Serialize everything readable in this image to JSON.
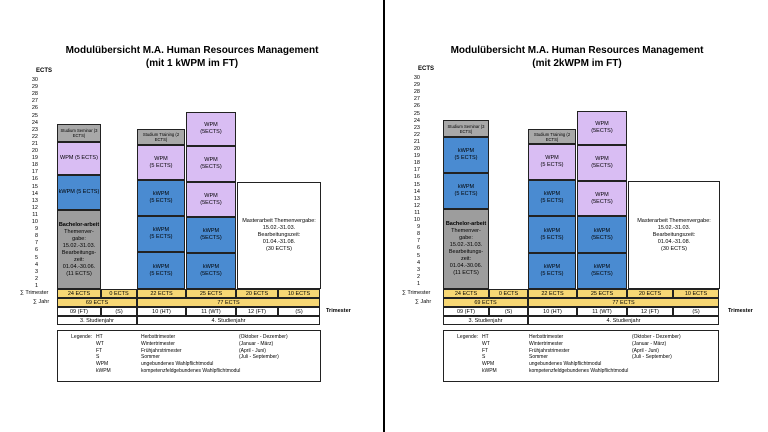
{
  "ects_label": "ECTS",
  "y_ticks": [
    "30",
    "29",
    "28",
    "27",
    "26",
    "25",
    "24",
    "23",
    "22",
    "21",
    "20",
    "19",
    "18",
    "17",
    "16",
    "15",
    "14",
    "13",
    "12",
    "11",
    "10",
    "9",
    "8",
    "7",
    "6",
    "5",
    "4",
    "3",
    "2",
    "1"
  ],
  "left": {
    "title_line1": "Modulübersicht M.A. Human Resources Management",
    "title_line2": "(mit 1 kWPM im FT)",
    "col1": {
      "seminar": "Studium Seminar (3 ECTS)",
      "wpm": "WPM (5 ECTS)",
      "kwpm": "kWPM (5 ECTS)",
      "bachelor": [
        "Bachelor-arbeit",
        "Themenver-",
        "gabe:",
        "15.02.-31.03.",
        "Bearbeitungs-",
        "zeit:",
        "01.04.-30.06.",
        "(11 ECTS)"
      ]
    },
    "col3": {
      "training": "Studium Training (2 ECTS)",
      "wpm": [
        "WPM",
        "(5 ECTS)"
      ],
      "kwpm1": [
        "kWPM",
        "(5 ECTS)"
      ],
      "kwpm2": [
        "kWPM",
        "(5 ECTS)"
      ],
      "kwpm3": [
        "kWPM",
        "(5 ECTS)"
      ]
    },
    "col4": {
      "wpm1": [
        "WPM",
        "(5ECTS)"
      ],
      "wpm2": [
        "WPM",
        "(5ECTS)"
      ],
      "wpm3": [
        "WPM",
        "(5ECTS)"
      ],
      "kwpm1": [
        "kWPM",
        "(5ECTS)"
      ],
      "kwpm2": [
        "kWPM",
        "(5ECTS)"
      ]
    },
    "master": [
      "Masterarbeit Themenvergabe:",
      "15.02.-31.03.",
      "Bearbeitungszeit:",
      "01.04.-31.08.",
      "(30 ECTS)"
    ]
  },
  "right": {
    "title_line1": "Modulübersicht M.A. Human Resources Management",
    "title_line2": "(mit 2kWPM im FT)",
    "col1": {
      "seminar": "Studium Seminar (3 ECTS)",
      "kwpm1": [
        "kWPM",
        "(5 ECTS)"
      ],
      "kwpm2": [
        "kWPM",
        "(5 ECTS)"
      ],
      "bachelor": [
        "Bachelor-arbeit",
        "Themenver-",
        "gabe:",
        "15.02.-31.03.",
        "Bearbeitungs-",
        "zeit:",
        "01.04.-30.06.",
        "(11 ECTS)"
      ]
    },
    "col3": {
      "training": "Studium Training (2 ECTS)",
      "wpm": [
        "WPM",
        "(5 ECTS)"
      ],
      "kwpm1": [
        "kWPM",
        "(5 ECTS)"
      ],
      "kwpm2": [
        "kWPM",
        "(5 ECTS)"
      ],
      "kwpm3": [
        "kWPM",
        "(5 ECTS)"
      ]
    },
    "col4": {
      "wpm1": [
        "WPM",
        "(5ECTS)"
      ],
      "wpm2": [
        "WPM",
        "(5ECTS)"
      ],
      "wpm3": [
        "WPM",
        "(5ECTS)"
      ],
      "kwpm1": [
        "kWPM",
        "(5ECTS)"
      ],
      "kwpm2": [
        "kWPM",
        "(5ECTS)"
      ]
    },
    "master": [
      "Masterarbeit Themenvergabe:",
      "15.02.-31.03.",
      "Bearbeitungszeit:",
      "01.04.-31.08.",
      "(30 ECTS)"
    ]
  },
  "rows": {
    "sum_trimester_label": "∑ Trimester",
    "sum_jahr_label": "∑ Jahr",
    "trimester_label": "Trimester",
    "trimester_ects": [
      "24 ECTS",
      "0 ECTS",
      "22 ECTS",
      "25 ECTS",
      "20 ECTS",
      "10 ECTS"
    ],
    "jahr_ects": [
      "69 ECTS",
      "77 ECTS"
    ],
    "trimesters": [
      "09 (FT)",
      "(S)",
      "10 (HT)",
      "11 (WT)",
      "12 (FT)",
      "(S)"
    ],
    "studienjahr": [
      "3. Studienjahr",
      "4. Studienjahr"
    ]
  },
  "legend": {
    "title": "Legende:",
    "items": [
      {
        "abbr": "HT",
        "name": "Herbsttrimester",
        "period": "(Oktober - Dezember)"
      },
      {
        "abbr": "WT",
        "name": "Wintertrimester",
        "period": "(Januar - März)"
      },
      {
        "abbr": "FT",
        "name": "Frühjahrstrimester",
        "period": "(April - Juni)"
      },
      {
        "abbr": "S",
        "name": "Sommer",
        "period": "(Juli - September)"
      },
      {
        "abbr": "WPM",
        "name": "ungebundenes Wahlpflichtmodul",
        "period": ""
      },
      {
        "abbr": "kWPM",
        "name": "kompetenzfeldgebundenes Wahlpflichtmodul",
        "period": ""
      }
    ]
  },
  "colors": {
    "wpm": "#d9bdf3",
    "kwpm": "#4a8bd1",
    "grey": "#9d9d9d",
    "yellow": "#f7d774"
  }
}
